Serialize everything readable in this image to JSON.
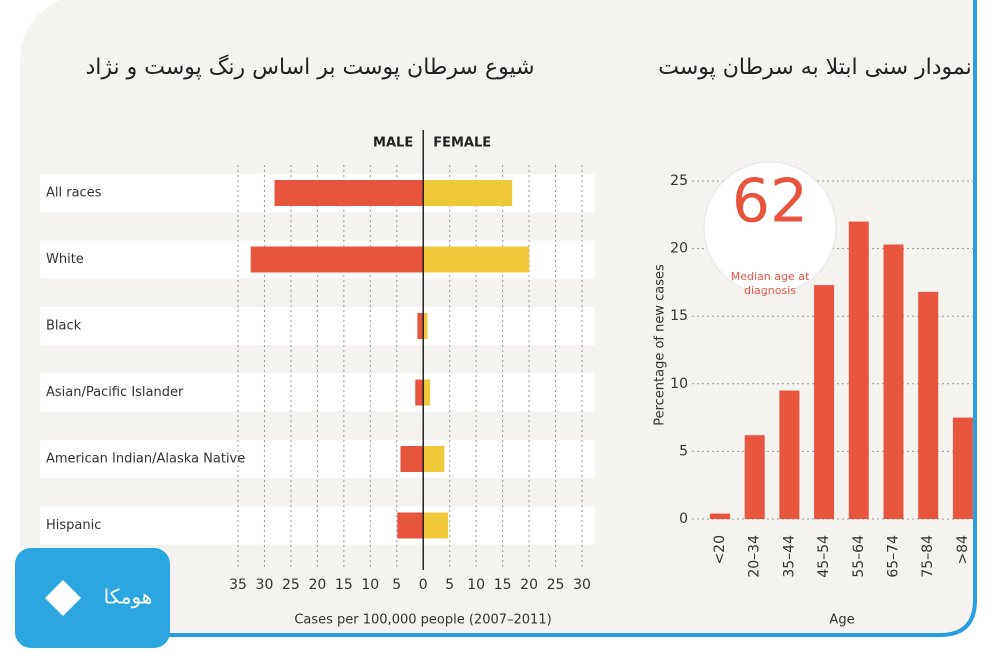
{
  "chart_data": [
    {
      "type": "bar",
      "orientation": "horizontal",
      "title": "شیوع سرطان پوست بر اساس رنگ پوست و نژاد",
      "categories": [
        "All races",
        "White",
        "Black",
        "Asian/Pacific Islander",
        "American Indian/Alaska Native",
        "Hispanic"
      ],
      "series": [
        {
          "name": "MALE",
          "color": "#e8553e",
          "values": [
            -28.1,
            -32.6,
            -1.1,
            -1.5,
            -4.3,
            -4.9
          ]
        },
        {
          "name": "FEMALE",
          "color": "#f0c93a",
          "values": [
            16.8,
            20,
            0.8,
            1.3,
            4,
            4.7
          ]
        }
      ],
      "xlabel": "Cases per 100,000 people (2007–2011)",
      "xlim": [
        -35,
        30
      ],
      "xticks": [
        {
          "value": -35,
          "label": "35"
        },
        {
          "value": -30,
          "label": "30"
        },
        {
          "value": -25,
          "label": "25"
        },
        {
          "value": -20,
          "label": "20"
        },
        {
          "value": -15,
          "label": "15"
        },
        {
          "value": -10,
          "label": "10"
        },
        {
          "value": -5,
          "label": "5"
        },
        0,
        5,
        10,
        15,
        20,
        25,
        30
      ],
      "grid": true
    },
    {
      "type": "bar",
      "orientation": "vertical",
      "title": "نمودار سنی ابتلا به سرطان پوست",
      "categories": [
        "<20",
        "20–34",
        "35–44",
        "45–54",
        "55–64",
        "65–74",
        "75–84",
        ">84"
      ],
      "values": [
        0.4,
        6.2,
        9.5,
        17.3,
        22.0,
        20.3,
        16.8,
        7.5
      ],
      "color": "#e8553e",
      "ylabel": "Percentage of new cases",
      "xlabel": "Age",
      "ylim": [
        0,
        25
      ],
      "yticks": [
        0,
        5,
        10,
        15,
        20,
        25
      ],
      "grid": true,
      "annotation": {
        "text": "62",
        "caption": "Median age at diagnosis"
      }
    }
  ],
  "logo": {
    "text": "هومکا"
  }
}
